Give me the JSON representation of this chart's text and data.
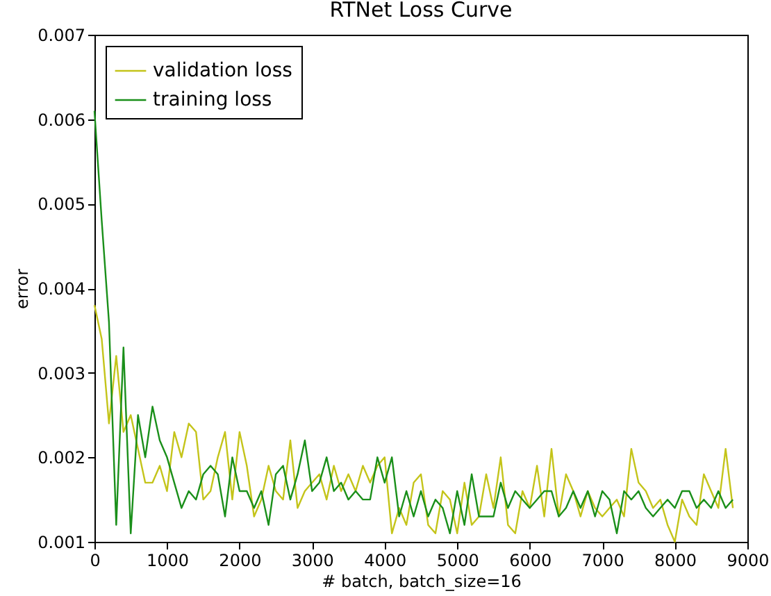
{
  "chart_data": {
    "type": "line",
    "title": "RTNet Loss Curve",
    "xlabel": "# batch, batch_size=16",
    "ylabel": "error",
    "x": [
      0,
      100,
      200,
      300,
      400,
      500,
      600,
      700,
      800,
      900,
      1000,
      1100,
      1200,
      1300,
      1400,
      1500,
      1600,
      1700,
      1800,
      1900,
      2000,
      2100,
      2200,
      2300,
      2400,
      2500,
      2600,
      2700,
      2800,
      2900,
      3000,
      3100,
      3200,
      3300,
      3400,
      3500,
      3600,
      3700,
      3800,
      3900,
      4000,
      4100,
      4200,
      4300,
      4400,
      4500,
      4600,
      4700,
      4800,
      4900,
      5000,
      5100,
      5200,
      5300,
      5400,
      5500,
      5600,
      5700,
      5800,
      5900,
      6000,
      6100,
      6200,
      6300,
      6400,
      6500,
      6600,
      6700,
      6800,
      6900,
      7000,
      7100,
      7200,
      7300,
      7400,
      7500,
      7600,
      7700,
      7800,
      7900,
      8000,
      8100,
      8200,
      8300,
      8400,
      8500,
      8600,
      8700,
      8800
    ],
    "series": [
      {
        "name": "validation loss",
        "color": "#c4c41a",
        "values": [
          0.0038,
          0.0034,
          0.0024,
          0.0032,
          0.0023,
          0.0025,
          0.0021,
          0.0017,
          0.0017,
          0.0019,
          0.0016,
          0.0023,
          0.002,
          0.0024,
          0.0023,
          0.0015,
          0.0016,
          0.002,
          0.0023,
          0.0015,
          0.0023,
          0.0019,
          0.0013,
          0.0015,
          0.0019,
          0.0016,
          0.0015,
          0.0022,
          0.0014,
          0.0016,
          0.0017,
          0.0018,
          0.0015,
          0.0019,
          0.0016,
          0.0018,
          0.0016,
          0.0019,
          0.0017,
          0.0019,
          0.002,
          0.0011,
          0.0014,
          0.0012,
          0.0017,
          0.0018,
          0.0012,
          0.0011,
          0.0016,
          0.0015,
          0.0011,
          0.0017,
          0.0012,
          0.0013,
          0.0018,
          0.0014,
          0.002,
          0.0012,
          0.0011,
          0.0016,
          0.0014,
          0.0019,
          0.0013,
          0.0021,
          0.0013,
          0.0018,
          0.0016,
          0.0013,
          0.0016,
          0.0014,
          0.0013,
          0.0014,
          0.0015,
          0.0013,
          0.0021,
          0.0017,
          0.0016,
          0.0014,
          0.0015,
          0.0012,
          0.001,
          0.0015,
          0.0013,
          0.0012,
          0.0018,
          0.0016,
          0.0014,
          0.0021,
          0.0014
        ]
      },
      {
        "name": "training loss",
        "color": "#1a8f1a",
        "values": [
          0.0061,
          0.0048,
          0.0036,
          0.0012,
          0.0033,
          0.0011,
          0.0025,
          0.002,
          0.0026,
          0.0022,
          0.002,
          0.0017,
          0.0014,
          0.0016,
          0.0015,
          0.0018,
          0.0019,
          0.0018,
          0.0013,
          0.002,
          0.0016,
          0.0016,
          0.0014,
          0.0016,
          0.0012,
          0.0018,
          0.0019,
          0.0015,
          0.0018,
          0.0022,
          0.0016,
          0.0017,
          0.002,
          0.0016,
          0.0017,
          0.0015,
          0.0016,
          0.0015,
          0.0015,
          0.002,
          0.0017,
          0.002,
          0.0013,
          0.0016,
          0.0013,
          0.0016,
          0.0013,
          0.0015,
          0.0014,
          0.0011,
          0.0016,
          0.0012,
          0.0018,
          0.0013,
          0.0013,
          0.0013,
          0.0017,
          0.0014,
          0.0016,
          0.0015,
          0.0014,
          0.0015,
          0.0016,
          0.0016,
          0.0013,
          0.0014,
          0.0016,
          0.0014,
          0.0016,
          0.0013,
          0.0016,
          0.0015,
          0.0011,
          0.0016,
          0.0015,
          0.0016,
          0.0014,
          0.0013,
          0.0014,
          0.0015,
          0.0014,
          0.0016,
          0.0016,
          0.0014,
          0.0015,
          0.0014,
          0.0016,
          0.0014,
          0.0015
        ]
      }
    ],
    "xlim": [
      0,
      9000
    ],
    "xticks": [
      0,
      1000,
      2000,
      3000,
      4000,
      5000,
      6000,
      7000,
      8000,
      9000
    ],
    "ylim": [
      0.001,
      0.007
    ],
    "yticks": [
      0.001,
      0.002,
      0.003,
      0.004,
      0.005,
      0.006,
      0.007
    ],
    "legend": "top left",
    "marker": "none",
    "line_style": "solid"
  }
}
